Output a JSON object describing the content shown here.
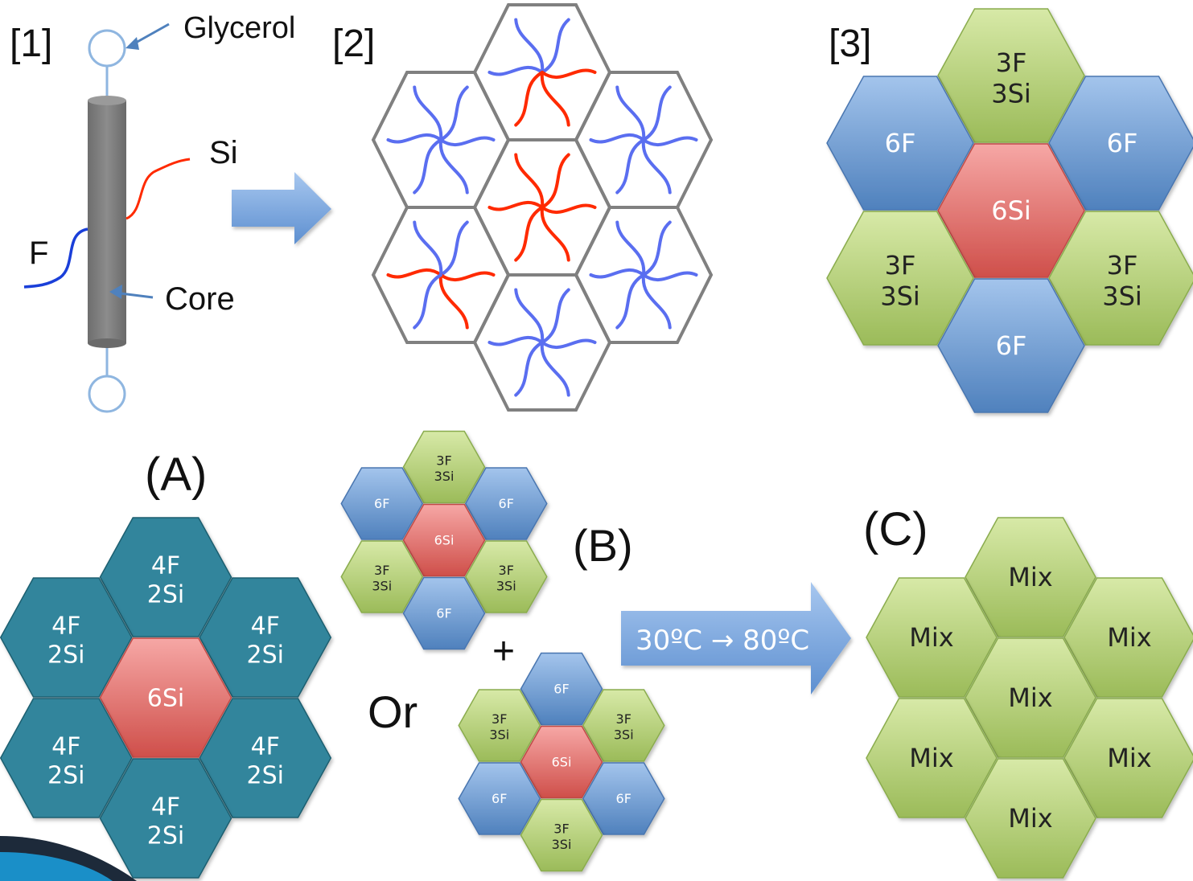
{
  "colors": {
    "blue_top": "#a3c4ec",
    "blue_bottom": "#4f81bd",
    "green_top": "#d7e9a7",
    "green_bottom": "#9bbb59",
    "red_top": "#f6a7a5",
    "red_bottom": "#cf4f4a",
    "teal": "#31859c",
    "grid_gray": "#808080",
    "chain_red": "#ff2a00",
    "chain_blue": "#5a6ef0",
    "core_gray": "#808080"
  },
  "panel1": {
    "label": "[1]",
    "glycerol": "Glycerol",
    "si": "Si",
    "f": "F",
    "core": "Core"
  },
  "panel2": {
    "label": "[2]"
  },
  "panel3": {
    "label": "[3]",
    "cells": [
      {
        "fill": "green",
        "line1": "3F",
        "line2": "3Si"
      },
      {
        "fill": "blue",
        "line1": "6F",
        "line2": ""
      },
      {
        "fill": "blue",
        "line1": "6F",
        "line2": ""
      },
      {
        "fill": "red",
        "line1": "6Si",
        "line2": ""
      },
      {
        "fill": "green",
        "line1": "3F",
        "line2": "3Si"
      },
      {
        "fill": "green",
        "line1": "3F",
        "line2": "3Si"
      },
      {
        "fill": "blue",
        "line1": "6F",
        "line2": ""
      }
    ]
  },
  "panelA": {
    "label": "(A)",
    "cells": [
      {
        "fill": "teal",
        "line1": "4F",
        "line2": "2Si"
      },
      {
        "fill": "teal",
        "line1": "4F",
        "line2": "2Si"
      },
      {
        "fill": "teal",
        "line1": "4F",
        "line2": "2Si"
      },
      {
        "fill": "red",
        "line1": "6Si",
        "line2": ""
      },
      {
        "fill": "teal",
        "line1": "4F",
        "line2": "2Si"
      },
      {
        "fill": "teal",
        "line1": "4F",
        "line2": "2Si"
      },
      {
        "fill": "teal",
        "line1": "4F",
        "line2": "2Si"
      }
    ]
  },
  "panelB": {
    "label": "(B)",
    "plus": "+",
    "or": "Or",
    "arrow_text": "30ºC → 80ºC",
    "cluster1": [
      {
        "fill": "green",
        "line1": "3F",
        "line2": "3Si"
      },
      {
        "fill": "blue",
        "line1": "6F",
        "line2": ""
      },
      {
        "fill": "blue",
        "line1": "6F",
        "line2": ""
      },
      {
        "fill": "red",
        "line1": "6Si",
        "line2": ""
      },
      {
        "fill": "green",
        "line1": "3F",
        "line2": "3Si"
      },
      {
        "fill": "green",
        "line1": "3F",
        "line2": "3Si"
      },
      {
        "fill": "blue",
        "line1": "6F",
        "line2": ""
      }
    ],
    "cluster2": [
      {
        "fill": "blue",
        "line1": "6F",
        "line2": ""
      },
      {
        "fill": "green",
        "line1": "3F",
        "line2": "3Si"
      },
      {
        "fill": "green",
        "line1": "3F",
        "line2": "3Si"
      },
      {
        "fill": "red",
        "line1": "6Si",
        "line2": ""
      },
      {
        "fill": "blue",
        "line1": "6F",
        "line2": ""
      },
      {
        "fill": "blue",
        "line1": "6F",
        "line2": ""
      },
      {
        "fill": "green",
        "line1": "3F",
        "line2": "3Si"
      }
    ]
  },
  "panelC": {
    "label": "(C)",
    "cells": [
      {
        "fill": "green",
        "line1": "Mix",
        "line2": ""
      },
      {
        "fill": "green",
        "line1": "Mix",
        "line2": ""
      },
      {
        "fill": "green",
        "line1": "Mix",
        "line2": ""
      },
      {
        "fill": "green",
        "line1": "Mix",
        "line2": ""
      },
      {
        "fill": "green",
        "line1": "Mix",
        "line2": ""
      },
      {
        "fill": "green",
        "line1": "Mix",
        "line2": ""
      },
      {
        "fill": "green",
        "line1": "Mix",
        "line2": ""
      }
    ]
  }
}
